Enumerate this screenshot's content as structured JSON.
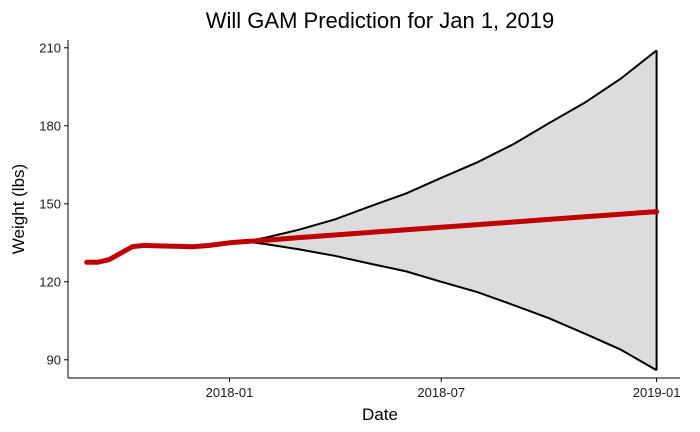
{
  "chart_data": {
    "type": "line",
    "title": "Will GAM Prediction for Jan 1, 2019",
    "xlabel": "Date",
    "ylabel": "Weight (lbs)",
    "xlim": [
      "2017-08-16",
      "2019-01-21"
    ],
    "ylim": [
      83,
      213
    ],
    "x_ticks": [
      {
        "date": "2018-01-01",
        "label": "2018-01"
      },
      {
        "date": "2018-07-01",
        "label": "2018-07"
      },
      {
        "date": "2019-01-01",
        "label": "2019-01"
      }
    ],
    "y_ticks": [
      90,
      120,
      150,
      180,
      210
    ],
    "grid": false,
    "legend": "none",
    "colors": {
      "prediction_line": "#c00000",
      "interval_fill": "#dcdcdc",
      "interval_edge": "#000000",
      "axis": "#000000"
    },
    "series": [
      {
        "role": "observed-and-predicted",
        "x": [
          "2017-09-01",
          "2017-09-10",
          "2017-09-20",
          "2017-09-30",
          "2017-10-10",
          "2017-10-20",
          "2017-11-01",
          "2017-11-15",
          "2017-12-01",
          "2017-12-15",
          "2018-01-01",
          "2018-01-15",
          "2018-02-01",
          "2018-03-01",
          "2018-04-01",
          "2018-05-01",
          "2018-06-01",
          "2018-07-01",
          "2018-08-01",
          "2018-09-01",
          "2018-10-01",
          "2018-11-01",
          "2018-12-01",
          "2019-01-01"
        ],
        "y": [
          127.5,
          127.5,
          128.5,
          131,
          133.5,
          134,
          133.8,
          133.7,
          133.5,
          134,
          135,
          135.5,
          136,
          137,
          138,
          139,
          140,
          141,
          142,
          143,
          144,
          145,
          146,
          147
        ]
      },
      {
        "role": "upper-bound",
        "x": [
          "2018-01-15",
          "2018-02-01",
          "2018-03-01",
          "2018-04-01",
          "2018-05-01",
          "2018-06-01",
          "2018-07-01",
          "2018-08-01",
          "2018-09-01",
          "2018-10-01",
          "2018-11-01",
          "2018-12-01",
          "2019-01-01"
        ],
        "y": [
          135.5,
          137,
          140,
          144,
          149,
          154,
          160,
          166,
          173,
          181,
          189,
          198,
          209
        ]
      },
      {
        "role": "lower-bound",
        "x": [
          "2018-01-15",
          "2018-02-01",
          "2018-03-01",
          "2018-04-01",
          "2018-05-01",
          "2018-06-01",
          "2018-07-01",
          "2018-08-01",
          "2018-09-01",
          "2018-10-01",
          "2018-11-01",
          "2018-12-01",
          "2019-01-01"
        ],
        "y": [
          135.5,
          134.5,
          132.5,
          130,
          127,
          124,
          120,
          116,
          111,
          106,
          100,
          94,
          86
        ]
      }
    ]
  }
}
